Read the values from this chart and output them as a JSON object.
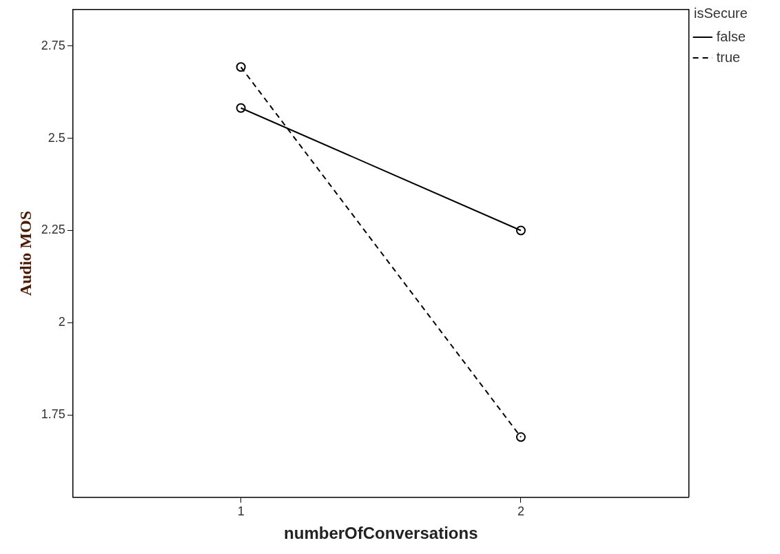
{
  "chart_data": {
    "type": "line",
    "xlabel": "numberOfConversations",
    "ylabel": "Audio MOS",
    "legend_title": "isSecure",
    "legend": "top right",
    "marker": "circle",
    "grid": false,
    "x": [
      1,
      2
    ],
    "xlim": [
      0.4,
      2.6
    ],
    "xticks": [
      1,
      2
    ],
    "ylim": [
      1.527,
      2.849
    ],
    "yticks": [
      1.75,
      2,
      2.25,
      2.5,
      2.75
    ],
    "series": [
      {
        "name": "false",
        "color": "#000000",
        "line_style": "solid",
        "values": [
          2.582,
          2.25
        ]
      },
      {
        "name": "true",
        "color": "#000000",
        "line_style": "dashed",
        "values": [
          2.693,
          1.69
        ]
      }
    ]
  }
}
